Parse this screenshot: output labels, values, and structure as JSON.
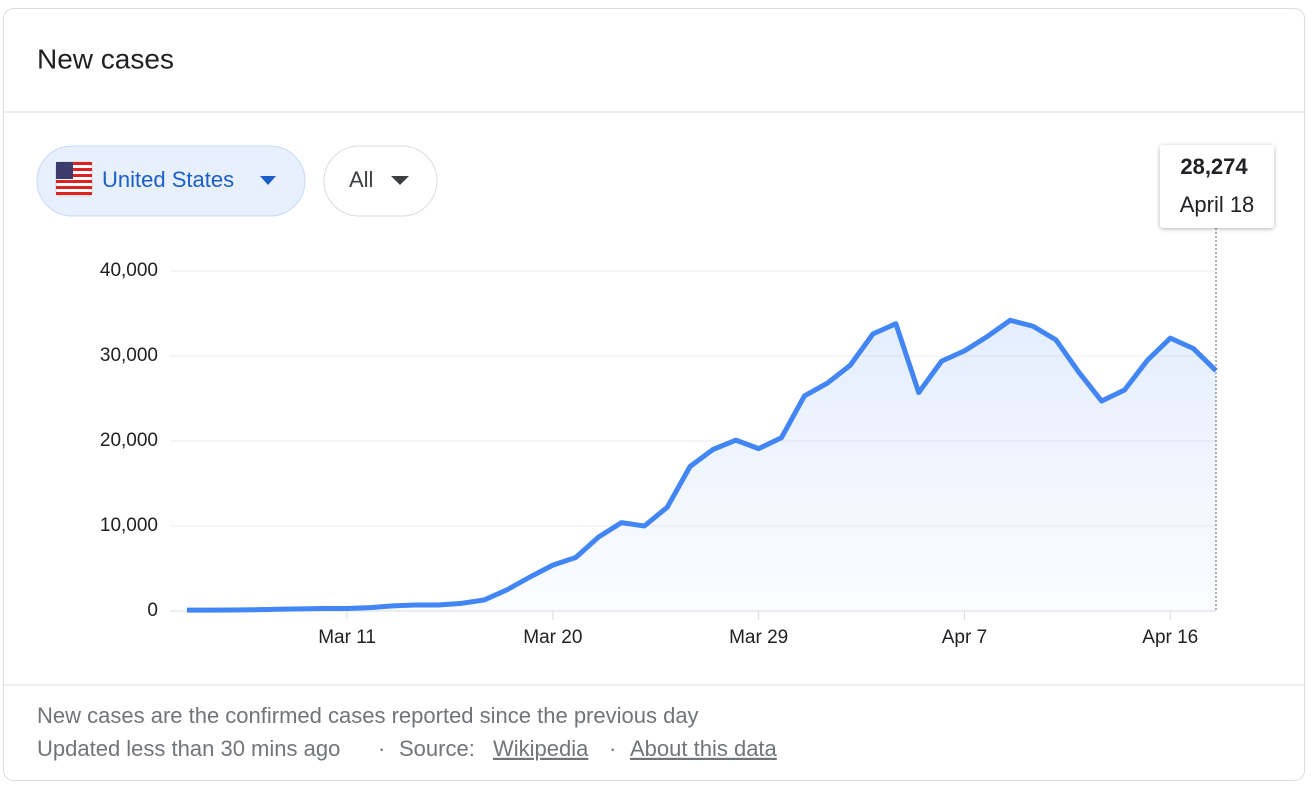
{
  "header": {
    "title": "New cases"
  },
  "filters": {
    "region": "United States",
    "scope": "All"
  },
  "tooltip": {
    "value_label": "28,274",
    "date": "April 18"
  },
  "chart_data": {
    "type": "area",
    "categories": [
      null,
      null,
      null,
      null,
      null,
      null,
      null,
      "Mar 11",
      null,
      null,
      null,
      null,
      null,
      null,
      null,
      null,
      "Mar 20",
      null,
      null,
      null,
      null,
      null,
      null,
      null,
      null,
      "Mar 29",
      null,
      null,
      null,
      null,
      null,
      null,
      null,
      null,
      "Apr 7",
      null,
      null,
      null,
      null,
      null,
      null,
      null,
      null,
      "Apr 16",
      null,
      null
    ],
    "series": [
      {
        "name": "New cases",
        "color": "#4285f4",
        "values": [
          100,
          100,
          120,
          150,
          200,
          250,
          300,
          300,
          400,
          600,
          700,
          700,
          900,
          1300,
          2500,
          4000,
          5400,
          6300,
          8700,
          10400,
          10000,
          12200,
          17000,
          19000,
          20100,
          19100,
          20400,
          25300,
          26800,
          28900,
          32600,
          33800,
          25700,
          29400,
          30600,
          32300,
          34200,
          33500,
          31900,
          28100,
          24700,
          26000,
          29500,
          32100,
          30900,
          28274
        ]
      }
    ],
    "ylim": [
      0,
      40000
    ],
    "yticks": [
      0,
      {
        "value": 10000,
        "label": "10,000"
      },
      {
        "value": 20000,
        "label": "20,000"
      },
      {
        "value": 30000,
        "label": "30,000"
      },
      {
        "value": 40000,
        "label": "40,000"
      }
    ],
    "grid": true
  },
  "footer": {
    "note": "New cases are the confirmed cases reported since the previous day",
    "updated": "Updated less than 30 mins ago",
    "separator": "·",
    "source_label": "Source:",
    "source_link": "Wikipedia",
    "about_link": "About this data"
  }
}
